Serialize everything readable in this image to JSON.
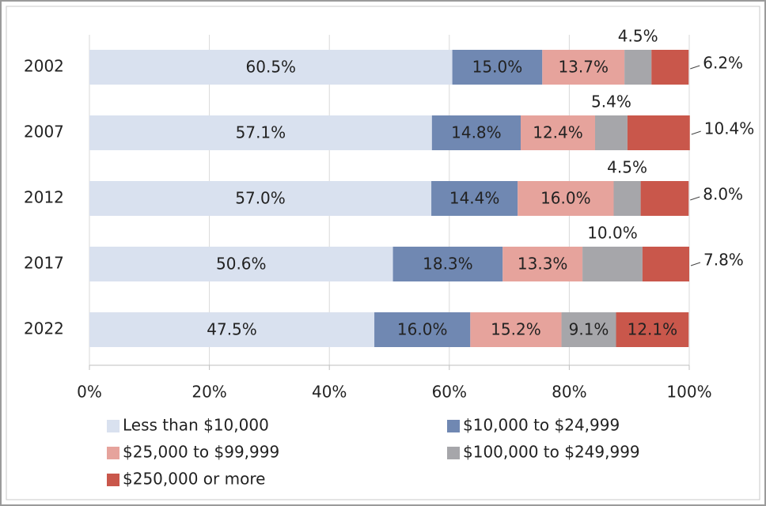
{
  "chart_data": {
    "type": "stacked-bar-horizontal",
    "categories": [
      "2002",
      "2007",
      "2012",
      "2017",
      "2022"
    ],
    "series": [
      {
        "name": "Less than $10,000",
        "color": "#d9e1ef",
        "values": [
          60.5,
          57.1,
          57.0,
          50.6,
          47.5
        ],
        "value_labels": [
          "60.5%",
          "57.1%",
          "57.0%",
          "50.6%",
          "47.5%"
        ]
      },
      {
        "name": "$10,000 to $24,999",
        "color": "#7088b2",
        "values": [
          15.0,
          14.8,
          14.4,
          18.3,
          16.0
        ],
        "value_labels": [
          "15.0%",
          "14.8%",
          "14.4%",
          "18.3%",
          "16.0%"
        ]
      },
      {
        "name": "$25,000 to $99,999",
        "color": "#e6a39c",
        "values": [
          13.7,
          12.4,
          16.0,
          13.3,
          15.2
        ],
        "value_labels": [
          "13.7%",
          "12.4%",
          "16.0%",
          "13.3%",
          "15.2%"
        ]
      },
      {
        "name": "$100,000 to $249,999",
        "color": "#a6a6aa",
        "values": [
          4.5,
          5.4,
          4.5,
          10.0,
          9.1
        ],
        "value_labels": [
          "4.5%",
          "5.4%",
          "4.5%",
          "10.0%",
          "9.1%"
        ]
      },
      {
        "name": "$250,000 or more",
        "color": "#c9574b",
        "values": [
          6.2,
          10.4,
          8.0,
          7.8,
          12.1
        ],
        "value_labels": [
          "6.2%",
          "10.4%",
          "8.0%",
          "7.8%",
          "12.1%"
        ]
      }
    ],
    "xlim": [
      0,
      100
    ],
    "xticks": [
      {
        "value": 0,
        "label": "0%"
      },
      {
        "value": 20,
        "label": "20%"
      },
      {
        "value": 40,
        "label": "40%"
      },
      {
        "value": 60,
        "label": "60%"
      },
      {
        "value": 80,
        "label": "80%"
      },
      {
        "value": 100,
        "label": "100%"
      }
    ],
    "grid": true
  }
}
